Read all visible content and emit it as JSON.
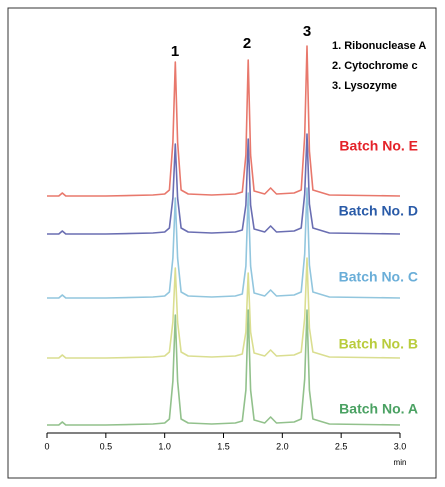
{
  "chart_data": {
    "type": "line",
    "peak_labels": [
      "1",
      "2",
      "3"
    ],
    "legend_items": [
      "1. Ribonuclease A",
      "2. Cytochrome c",
      "3. Lysozyme"
    ],
    "x_label": "min",
    "x": [
      0,
      0.1,
      0.13,
      0.16,
      0.5,
      0.9,
      1.0,
      1.04,
      1.07,
      1.09,
      1.11,
      1.14,
      1.2,
      1.4,
      1.6,
      1.66,
      1.69,
      1.71,
      1.73,
      1.76,
      1.85,
      1.9,
      1.95,
      2.1,
      2.16,
      2.19,
      2.21,
      2.23,
      2.26,
      2.4,
      3.0
    ],
    "xlim": [
      0,
      3
    ],
    "xticks": [
      0,
      0.5,
      {
        "value": 1,
        "label": "1.0"
      },
      1.5,
      {
        "value": 2,
        "label": "2.0"
      },
      2.5,
      {
        "value": 3,
        "label": "3.0"
      }
    ],
    "series": [
      {
        "name": "Batch No. E",
        "color": "#e8786c",
        "label_color": "#e42229",
        "values": [
          0,
          0,
          3,
          0,
          0,
          1,
          2,
          6,
          54,
          134,
          54,
          6,
          2,
          1,
          2,
          4,
          41,
          136,
          41,
          5,
          2,
          8,
          2,
          3,
          6,
          60,
          150,
          45,
          6,
          1,
          0
        ]
      },
      {
        "name": "Batch No. D",
        "color": "#6a6eb2",
        "label_color": "#2a5ba8",
        "values": [
          0,
          0,
          3,
          0,
          0,
          1,
          2,
          6,
          36,
          90,
          36,
          6,
          2,
          1,
          2,
          4,
          29,
          95,
          29,
          5,
          2,
          8,
          2,
          3,
          6,
          40,
          100,
          30,
          6,
          1,
          0
        ]
      },
      {
        "name": "Batch No. C",
        "color": "#92c6de",
        "label_color": "#6aaed8",
        "values": [
          0,
          0,
          3,
          0,
          0,
          1,
          2,
          6,
          40,
          100,
          40,
          6,
          2,
          1,
          2,
          4,
          32,
          105,
          32,
          5,
          2,
          8,
          2,
          3,
          6,
          44,
          110,
          33,
          6,
          1,
          0
        ]
      },
      {
        "name": "Batch No. B",
        "color": "#dade90",
        "label_color": "#b9cc3c",
        "values": [
          0,
          0,
          3,
          0,
          0,
          1,
          2,
          6,
          36,
          90,
          36,
          6,
          2,
          1,
          2,
          4,
          26,
          85,
          26,
          5,
          2,
          8,
          2,
          3,
          6,
          40,
          100,
          30,
          6,
          1,
          0
        ]
      },
      {
        "name": "Batch No. A",
        "color": "#92c18c",
        "label_color": "#4aa162",
        "values": [
          0,
          0,
          3,
          0,
          0,
          1,
          2,
          6,
          44,
          110,
          44,
          6,
          2,
          1,
          2,
          4,
          35,
          115,
          35,
          5,
          2,
          8,
          2,
          3,
          6,
          46,
          115,
          35,
          6,
          1,
          0
        ]
      }
    ]
  }
}
